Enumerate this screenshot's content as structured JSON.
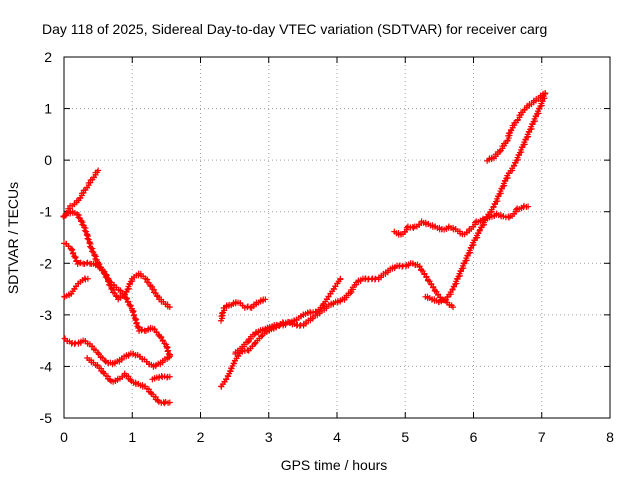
{
  "chart_data": {
    "type": "scatter",
    "title": "Day 118 of 2025, Sidereal Day-to-day VTEC variation (SDTVAR) for receiver carg",
    "xlabel": "GPS time / hours",
    "ylabel": "SDTVAR / TECUs",
    "xlim": [
      0,
      8
    ],
    "ylim": [
      -5,
      2
    ],
    "xticks": [
      "0",
      "1",
      "2",
      "3",
      "4",
      "5",
      "6",
      "7",
      "8"
    ],
    "yticks": [
      "-5",
      "-4",
      "-3",
      "-2",
      "-1",
      "0",
      "1",
      "2"
    ],
    "grid": true,
    "marker": "plus",
    "color": "#ff0000",
    "series": [
      {
        "points": [
          [
            0.0,
            -1.1
          ],
          [
            0.1,
            -0.9
          ],
          [
            0.2,
            -0.8
          ],
          [
            0.3,
            -0.6
          ],
          [
            0.4,
            -0.4
          ],
          [
            0.5,
            -0.2
          ]
        ]
      },
      {
        "points": [
          [
            0.0,
            -1.1
          ],
          [
            0.1,
            -1.0
          ],
          [
            0.2,
            -1.05
          ],
          [
            0.3,
            -1.3
          ],
          [
            0.4,
            -1.7
          ],
          [
            0.5,
            -2.0
          ],
          [
            0.6,
            -2.2
          ],
          [
            0.7,
            -2.5
          ],
          [
            0.8,
            -2.7
          ],
          [
            0.9,
            -2.6
          ],
          [
            1.0,
            -2.3
          ],
          [
            1.1,
            -2.2
          ],
          [
            1.2,
            -2.3
          ],
          [
            1.3,
            -2.5
          ],
          [
            1.4,
            -2.7
          ],
          [
            1.55,
            -2.85
          ]
        ]
      },
      {
        "points": [
          [
            0.0,
            -1.6
          ],
          [
            0.1,
            -1.7
          ],
          [
            0.2,
            -2.0
          ],
          [
            0.3,
            -2.0
          ],
          [
            0.4,
            -2.0
          ],
          [
            0.5,
            -2.05
          ],
          [
            0.6,
            -2.2
          ],
          [
            0.7,
            -2.4
          ],
          [
            0.8,
            -2.5
          ],
          [
            0.9,
            -2.65
          ],
          [
            1.0,
            -2.9
          ],
          [
            1.1,
            -3.3
          ],
          [
            1.2,
            -3.3
          ],
          [
            1.3,
            -3.25
          ],
          [
            1.4,
            -3.4
          ],
          [
            1.5,
            -3.6
          ],
          [
            1.55,
            -3.8
          ]
        ]
      },
      {
        "points": [
          [
            0.0,
            -2.65
          ],
          [
            0.1,
            -2.6
          ],
          [
            0.2,
            -2.4
          ],
          [
            0.3,
            -2.3
          ],
          [
            0.35,
            -2.3
          ]
        ]
      },
      {
        "points": [
          [
            0.0,
            -3.45
          ],
          [
            0.1,
            -3.55
          ],
          [
            0.2,
            -3.55
          ],
          [
            0.3,
            -3.5
          ],
          [
            0.4,
            -3.6
          ],
          [
            0.5,
            -3.75
          ],
          [
            0.6,
            -3.9
          ],
          [
            0.7,
            -3.95
          ],
          [
            0.8,
            -3.9
          ],
          [
            0.9,
            -3.8
          ],
          [
            1.0,
            -3.75
          ],
          [
            1.1,
            -3.8
          ],
          [
            1.2,
            -3.9
          ],
          [
            1.3,
            -4.0
          ],
          [
            1.4,
            -3.95
          ],
          [
            1.5,
            -3.85
          ],
          [
            1.55,
            -3.8
          ]
        ]
      },
      {
        "points": [
          [
            0.35,
            -3.85
          ],
          [
            0.5,
            -4.0
          ],
          [
            0.6,
            -4.15
          ],
          [
            0.7,
            -4.3
          ],
          [
            0.8,
            -4.25
          ],
          [
            0.9,
            -4.15
          ],
          [
            1.0,
            -4.3
          ],
          [
            1.1,
            -4.35
          ],
          [
            1.2,
            -4.4
          ],
          [
            1.3,
            -4.55
          ],
          [
            1.4,
            -4.7
          ],
          [
            1.5,
            -4.7
          ],
          [
            1.55,
            -4.7
          ]
        ]
      },
      {
        "points": [
          [
            1.3,
            -4.25
          ],
          [
            1.4,
            -4.2
          ],
          [
            1.55,
            -4.2
          ]
        ]
      },
      {
        "points": [
          [
            2.3,
            -3.1
          ],
          [
            2.35,
            -2.85
          ],
          [
            2.45,
            -2.8
          ],
          [
            2.55,
            -2.75
          ],
          [
            2.65,
            -2.85
          ],
          [
            2.75,
            -2.85
          ],
          [
            2.85,
            -2.75
          ],
          [
            2.95,
            -2.7
          ]
        ]
      },
      {
        "points": [
          [
            2.3,
            -4.4
          ],
          [
            2.4,
            -4.2
          ],
          [
            2.5,
            -3.9
          ],
          [
            2.6,
            -3.7
          ],
          [
            2.7,
            -3.7
          ],
          [
            2.8,
            -3.55
          ],
          [
            2.9,
            -3.4
          ],
          [
            3.0,
            -3.3
          ],
          [
            3.1,
            -3.25
          ],
          [
            3.2,
            -3.15
          ],
          [
            3.3,
            -3.15
          ],
          [
            3.4,
            -3.1
          ],
          [
            3.5,
            -3.0
          ],
          [
            3.6,
            -2.95
          ],
          [
            3.7,
            -2.95
          ],
          [
            3.8,
            -2.8
          ],
          [
            3.9,
            -2.6
          ],
          [
            4.0,
            -2.4
          ],
          [
            4.05,
            -2.3
          ]
        ]
      },
      {
        "points": [
          [
            2.5,
            -3.75
          ],
          [
            2.6,
            -3.65
          ],
          [
            2.7,
            -3.5
          ],
          [
            2.8,
            -3.35
          ],
          [
            2.9,
            -3.3
          ],
          [
            3.0,
            -3.25
          ],
          [
            3.1,
            -3.2
          ],
          [
            3.2,
            -3.2
          ],
          [
            3.3,
            -3.15
          ],
          [
            3.4,
            -3.2
          ],
          [
            3.5,
            -3.2
          ],
          [
            3.6,
            -3.1
          ],
          [
            3.7,
            -3.0
          ],
          [
            3.8,
            -2.9
          ],
          [
            3.9,
            -2.8
          ],
          [
            4.0,
            -2.75
          ],
          [
            4.1,
            -2.7
          ],
          [
            4.2,
            -2.55
          ],
          [
            4.3,
            -2.35
          ],
          [
            4.4,
            -2.3
          ],
          [
            4.5,
            -2.3
          ],
          [
            4.6,
            -2.3
          ],
          [
            4.7,
            -2.2
          ],
          [
            4.8,
            -2.1
          ],
          [
            4.9,
            -2.05
          ],
          [
            5.0,
            -2.05
          ],
          [
            5.1,
            -2.0
          ],
          [
            5.2,
            -2.05
          ],
          [
            5.3,
            -2.25
          ],
          [
            5.4,
            -2.45
          ],
          [
            5.5,
            -2.65
          ],
          [
            5.6,
            -2.75
          ],
          [
            5.7,
            -2.85
          ]
        ]
      },
      {
        "points": [
          [
            4.85,
            -1.4
          ],
          [
            4.95,
            -1.45
          ],
          [
            5.05,
            -1.3
          ],
          [
            5.15,
            -1.3
          ],
          [
            5.25,
            -1.2
          ],
          [
            5.35,
            -1.25
          ],
          [
            5.45,
            -1.3
          ],
          [
            5.55,
            -1.35
          ],
          [
            5.65,
            -1.3
          ],
          [
            5.75,
            -1.35
          ],
          [
            5.85,
            -1.45
          ],
          [
            5.95,
            -1.35
          ],
          [
            6.05,
            -1.2
          ],
          [
            6.15,
            -1.15
          ],
          [
            6.25,
            -1.1
          ],
          [
            6.35,
            -1.05
          ],
          [
            6.45,
            -1.1
          ],
          [
            6.55,
            -1.1
          ],
          [
            6.65,
            -0.95
          ],
          [
            6.75,
            -0.9
          ],
          [
            6.8,
            -0.9
          ]
        ]
      },
      {
        "points": [
          [
            5.3,
            -2.65
          ],
          [
            5.4,
            -2.7
          ],
          [
            5.5,
            -2.75
          ],
          [
            5.6,
            -2.7
          ],
          [
            5.7,
            -2.5
          ],
          [
            5.8,
            -2.2
          ],
          [
            5.9,
            -1.9
          ],
          [
            6.0,
            -1.6
          ],
          [
            6.1,
            -1.35
          ],
          [
            6.2,
            -1.1
          ],
          [
            6.3,
            -0.9
          ],
          [
            6.4,
            -0.6
          ],
          [
            6.5,
            -0.3
          ],
          [
            6.6,
            -0.1
          ],
          [
            6.7,
            0.2
          ],
          [
            6.8,
            0.5
          ],
          [
            6.9,
            0.8
          ],
          [
            7.0,
            1.1
          ],
          [
            7.05,
            1.3
          ]
        ]
      },
      {
        "points": [
          [
            6.2,
            0.0
          ],
          [
            6.3,
            0.05
          ],
          [
            6.4,
            0.2
          ],
          [
            6.5,
            0.4
          ],
          [
            6.55,
            0.6
          ],
          [
            6.65,
            0.8
          ],
          [
            6.75,
            1.0
          ],
          [
            6.85,
            1.1
          ],
          [
            6.95,
            1.2
          ],
          [
            7.05,
            1.3
          ]
        ]
      }
    ]
  }
}
